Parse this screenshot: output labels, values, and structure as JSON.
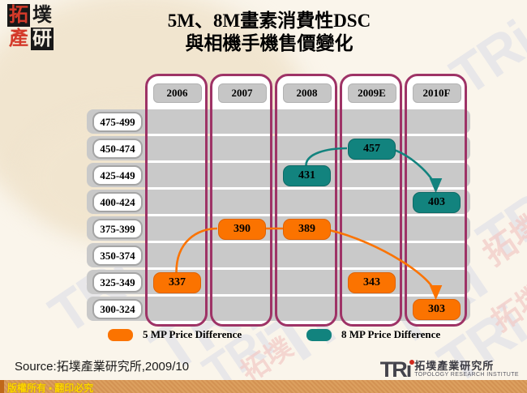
{
  "page": {
    "title_line1": "5M、8M畫素消費性DSC",
    "title_line2": "與相機手機售價變化",
    "source": "Source:拓墣產業研究所,2009/10",
    "copyright": "版權所有 ▪ 翻印必究"
  },
  "logo_topleft": {
    "chars": [
      "拓",
      "墣",
      "產",
      "研"
    ]
  },
  "footer_logo": {
    "tri": "TRi",
    "cn": "拓墣產業研究所",
    "en": "TOPOLOGY RESEARCH INSTITUTE"
  },
  "watermark": {
    "text": "TRi",
    "accent": "拓墣"
  },
  "colors": {
    "column_border": "#9E3366",
    "band_gray": "#C9C9C9",
    "orange": "#FB7300",
    "teal": "#12837E",
    "background": "#FAF5EB"
  },
  "legend": {
    "items": [
      {
        "label": "5 MP Price Difference",
        "color": "#FB7300"
      },
      {
        "label": "8 MP Price Difference",
        "color": "#12837E"
      }
    ]
  },
  "chart_data": {
    "type": "table",
    "title": "5M、8M畫素消費性DSC與相機手機售價變化",
    "columns": [
      "2006",
      "2007",
      "2008",
      "2009E",
      "2010F"
    ],
    "price_bands": [
      "475-499",
      "450-474",
      "425-449",
      "400-424",
      "375-399",
      "350-374",
      "325-349",
      "300-324"
    ],
    "series": [
      {
        "name": "5 MP Price Difference",
        "color": "#FB7300",
        "border": "#E06200",
        "points": [
          {
            "col": 0,
            "band": 6,
            "value": 337
          },
          {
            "col": 1,
            "band": 4,
            "value": 390
          },
          {
            "col": 2,
            "band": 4,
            "value": 389
          },
          {
            "col": 3,
            "band": 6,
            "value": 343
          },
          {
            "col": 4,
            "band": 7,
            "value": 303
          }
        ],
        "links": [
          {
            "from": 0,
            "to": 1,
            "arrow": false,
            "shape": "up"
          },
          {
            "from": 1,
            "to": 2,
            "arrow": false,
            "shape": "straight"
          },
          {
            "from": 2,
            "to": 4,
            "arrow": true,
            "shape": "down"
          }
        ]
      },
      {
        "name": "8 MP Price Difference",
        "color": "#12837E",
        "border": "#0D6A66",
        "points": [
          {
            "col": 2,
            "band": 2,
            "value": 431
          },
          {
            "col": 3,
            "band": 1,
            "value": 457
          },
          {
            "col": 4,
            "band": 3,
            "value": 403
          }
        ],
        "links": [
          {
            "from": 0,
            "to": 1,
            "arrow": false,
            "shape": "up"
          },
          {
            "from": 1,
            "to": 2,
            "arrow": true,
            "shape": "down"
          }
        ]
      }
    ]
  }
}
